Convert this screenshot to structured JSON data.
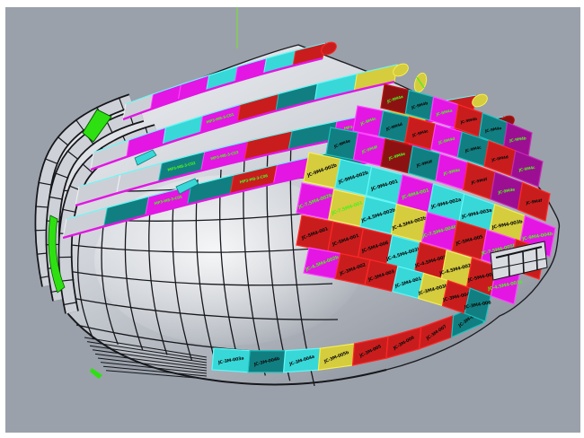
{
  "viewport": {
    "background": "#9aa1ab",
    "frame_color": "#ffffff",
    "construction_line_color": "#7ddd3c"
  },
  "palette": {
    "magenta": "#e316e3",
    "magenta_dark": "#9c0f92",
    "crimson": "#c91d1d",
    "maroon": "#8c1212",
    "cyan": "#38d8d8",
    "teal": "#117f81",
    "yellow": "#d5cc3e",
    "green": "#2ee011",
    "gray_panel": "#ccd0d6",
    "label_black": "#0c0c0c",
    "label_green": "#4df01e",
    "label_yellow": "#e6ef25"
  },
  "ribbons": [
    {
      "name": "ribbon-1",
      "tip": "crimson",
      "segments": [
        {
          "c": "gray_panel"
        },
        {
          "c": "magenta"
        },
        {
          "c": "magenta"
        },
        {
          "c": "cyan"
        },
        {
          "c": "magenta"
        },
        {
          "c": "cyan"
        },
        {
          "c": "crimson"
        }
      ]
    },
    {
      "name": "ribbon-2",
      "tip": "yellow",
      "segments": [
        {
          "c": "gray_panel"
        },
        {
          "c": "magenta"
        },
        {
          "c": "cyan"
        },
        {
          "c": "magenta",
          "label": "MP3-M8-3-C01",
          "t": "green"
        },
        {
          "c": "crimson"
        },
        {
          "c": "teal"
        },
        {
          "c": "cyan"
        },
        {
          "c": "yellow"
        }
      ]
    },
    {
      "name": "ribbon-3",
      "tip": "yellow",
      "segments": [
        {
          "c": "gray_panel"
        },
        {
          "c": "gray_panel"
        },
        {
          "c": "teal",
          "label": "MP3-M8-3-C02",
          "t": "green"
        },
        {
          "c": "magenta",
          "label": "MP3-M8-3-C03",
          "t": "green"
        },
        {
          "c": "crimson"
        },
        {
          "c": "teal"
        },
        {
          "c": "magenta",
          "label": "MP3-M8-3-C04",
          "t": "green"
        },
        {
          "c": "yellow"
        },
        {
          "c": "crimson"
        }
      ]
    },
    {
      "name": "ribbon-4",
      "tip": "maroon",
      "segments": [
        {
          "c": "gray_panel"
        },
        {
          "c": "teal"
        },
        {
          "c": "magenta",
          "label": "MP3-M8-3-C05",
          "t": "green"
        },
        {
          "c": "teal"
        },
        {
          "c": "crimson",
          "label": "MP3-M8-3-C06",
          "t": "green"
        },
        {
          "c": "magenta"
        },
        {
          "c": "teal"
        },
        {
          "c": "crimson"
        },
        {
          "c": "magenta",
          "label": "MP3-M8-3-C07",
          "t": "green"
        },
        {
          "c": "maroon"
        }
      ]
    }
  ],
  "board": {
    "rows": [
      {
        "panels": [
          {
            "c": "maroon",
            "label": "JC-9M4a",
            "t": "green"
          },
          {
            "c": "teal",
            "label": "JC-9M4b",
            "t": "black"
          },
          {
            "c": "magenta",
            "label": "JC-9M4a",
            "t": "green"
          },
          {
            "c": "crimson",
            "label": "JC-9M4b",
            "t": "black"
          },
          {
            "c": "teal",
            "label": "JC-9M4a",
            "t": "black"
          },
          {
            "c": "magenta_dark",
            "label": "JC-9M4b",
            "t": "green"
          }
        ]
      },
      {
        "panels": [
          {
            "c": "magenta",
            "label": "JC-9M4c",
            "t": "green"
          },
          {
            "c": "teal",
            "label": "JC-9M4d",
            "t": "black"
          },
          {
            "c": "crimson",
            "label": "JC-9M4c",
            "t": "black"
          },
          {
            "c": "magenta",
            "label": "JC-9M4d",
            "t": "green"
          },
          {
            "c": "teal",
            "label": "JC-9M4c",
            "t": "black"
          },
          {
            "c": "crimson",
            "label": "JC-9M4d",
            "t": "black"
          },
          {
            "c": "magenta_dark",
            "label": "JC-9M4c",
            "t": "green"
          }
        ]
      },
      {
        "panels": [
          {
            "c": "teal",
            "label": "JC-9M4e",
            "t": "black"
          },
          {
            "c": "magenta",
            "label": "JC-9M4f",
            "t": "green"
          },
          {
            "c": "maroon",
            "label": "JC-9M4e",
            "t": "green"
          },
          {
            "c": "teal",
            "label": "JC-9M4f",
            "t": "black"
          },
          {
            "c": "magenta",
            "label": "JC-9M4e",
            "t": "green"
          },
          {
            "c": "crimson",
            "label": "JC-9M4f",
            "t": "black"
          },
          {
            "c": "magenta_dark",
            "label": "JC-9M4e",
            "t": "green"
          },
          {
            "c": "crimson",
            "label": "JC-9M4f",
            "t": "black"
          }
        ]
      },
      {
        "panels": [
          {
            "c": "yellow",
            "label": "JC-9M4-002b",
            "t": "black"
          },
          {
            "c": "cyan",
            "label": "JC-9M4-002b",
            "t": "black"
          },
          {
            "c": "cyan",
            "label": "JC-9M4-001",
            "t": "black"
          },
          {
            "c": "magenta",
            "label": "JC-9M4-001",
            "t": "green"
          },
          {
            "c": "cyan",
            "label": "JC-9M4-002a",
            "t": "black"
          },
          {
            "c": "cyan",
            "label": "JC-9M4-003a",
            "t": "black"
          },
          {
            "c": "yellow",
            "label": "JC-9M4-003b",
            "t": "black"
          },
          {
            "c": "magenta",
            "label": "JC-9M4-004b",
            "t": "green"
          }
        ]
      },
      {
        "panels": [
          {
            "c": "magenta",
            "label": "JC-7.5M4-002b",
            "t": "green"
          },
          {
            "c": "yellow",
            "label": "JC-7.5M4-001",
            "t": "green"
          },
          {
            "c": "cyan",
            "label": "JC-4.5M4-002b",
            "t": "black"
          },
          {
            "c": "yellow",
            "label": "JC-4.5M4-002b",
            "t": "black"
          },
          {
            "c": "magenta",
            "label": "JC-7.5M4-004b",
            "t": "green"
          },
          {
            "c": "crimson",
            "label": "JC-5M4-005",
            "t": "black"
          },
          {
            "c": "magenta",
            "label": "JC-7.5M4-005b",
            "t": "green"
          },
          {
            "c": "crimson",
            "label": "JC-9M4-004",
            "t": "black"
          }
        ]
      },
      {
        "panels": [
          {
            "c": "crimson",
            "label": "JC-5M4-001",
            "t": "black"
          },
          {
            "c": "crimson",
            "label": "JC-5M4-001",
            "t": "black"
          },
          {
            "c": "crimson",
            "label": "JC-5M4-006",
            "t": "black"
          },
          {
            "c": "cyan",
            "label": "JC-4.5M4-003b",
            "t": "black"
          },
          {
            "c": "crimson",
            "label": "JC-4.5M4-001",
            "t": "black"
          },
          {
            "c": "yellow",
            "label": "JC-4.5M4-002a",
            "t": "black"
          },
          {
            "c": "crimson",
            "label": "JC-5M4-003",
            "t": "black"
          },
          {
            "c": "magenta",
            "label": "JC-4.5M4-003a",
            "t": "green"
          }
        ]
      },
      {
        "panels": [
          {
            "c": "magenta",
            "label": "JC-4.5M4-002b",
            "t": "green"
          },
          {
            "c": "crimson",
            "label": "JC-3M4-002",
            "t": "black"
          },
          {
            "c": "crimson",
            "label": "JC-3M4-003",
            "t": "black"
          },
          {
            "c": "cyan",
            "label": "JC-3M4-001",
            "t": "black"
          },
          {
            "c": "yellow",
            "label": "JC-3M4-003b",
            "t": "black"
          },
          {
            "c": "crimson",
            "label": "JC-3M4-004",
            "t": "black"
          },
          {
            "c": "teal",
            "label": "JC-3M4-006",
            "t": "black"
          }
        ]
      }
    ]
  },
  "bottom_row": {
    "panels": [
      {
        "c": "cyan",
        "label": "JC-3M-003a",
        "t": "black"
      },
      {
        "c": "teal",
        "label": "JC-3M-004b",
        "t": "black"
      },
      {
        "c": "cyan",
        "label": "JC-3M-004a",
        "t": "black"
      },
      {
        "c": "yellow",
        "label": "JC-3M-005b",
        "t": "black"
      },
      {
        "c": "crimson",
        "label": "JC-3M-005",
        "t": "black"
      },
      {
        "c": "crimson",
        "label": "JC-3M-006",
        "t": "black"
      },
      {
        "c": "crimson",
        "label": "JC-3M-007",
        "t": "black"
      },
      {
        "c": "teal",
        "label": "JC-3M-008",
        "t": "black"
      }
    ]
  }
}
